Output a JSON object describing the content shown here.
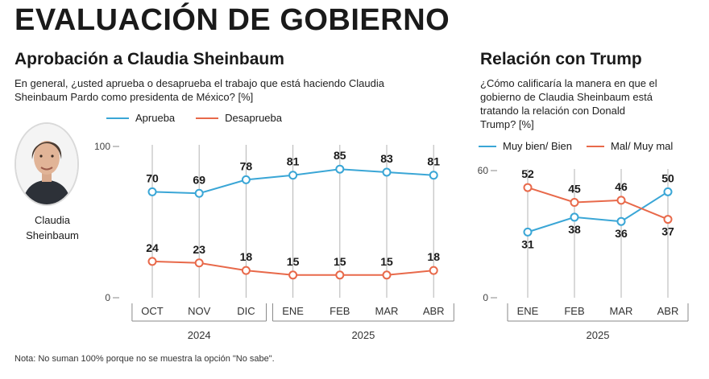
{
  "header": {
    "title": "EVALUACIÓN DE GOBIERNO"
  },
  "left_panel": {
    "subtitle": "Aprobación a Claudia Sheinbaum",
    "question_line1": "En general, ¿usted aprueba o desaprueba el trabajo que está haciendo Claudia",
    "question_line2": "Sheinbaum Pardo como presidenta de México? [%]",
    "photo_caption_line1": "Claudia",
    "photo_caption_line2": "Sheinbaum",
    "legend": [
      {
        "label": "Aprueba",
        "color": "#3aa6d6"
      },
      {
        "label": "Desaprueba",
        "color": "#e8694a"
      }
    ]
  },
  "right_panel": {
    "subtitle": "Relación con Trump",
    "question_line1": "¿Cómo calificaría la manera en que el",
    "question_line2": "gobierno de Claudia Sheinbaum está",
    "question_line3": "tratando la relación con Donald",
    "question_line4": "Trump? [%]",
    "legend": [
      {
        "label": "Muy bien/ Bien",
        "color": "#3aa6d6"
      },
      {
        "label": "Mal/ Muy mal",
        "color": "#e8694a"
      }
    ]
  },
  "footnote": "Nota: No suman 100% porque no se muestra la opción \"No sabe\".",
  "chart_data": [
    {
      "type": "line",
      "title": "Aprobación a Claudia Sheinbaum",
      "categories": [
        "OCT",
        "NOV",
        "DIC",
        "ENE",
        "FEB",
        "MAR",
        "ABR"
      ],
      "year_groups": [
        {
          "label": "2024",
          "start": 0,
          "end": 2
        },
        {
          "label": "2025",
          "start": 3,
          "end": 6
        }
      ],
      "ylim": [
        0,
        100
      ],
      "yticks": [
        0,
        100
      ],
      "series": [
        {
          "name": "Aprueba",
          "color": "#3aa6d6",
          "values": [
            70,
            69,
            78,
            81,
            85,
            83,
            81
          ]
        },
        {
          "name": "Desaprueba",
          "color": "#e8694a",
          "values": [
            24,
            23,
            18,
            15,
            15,
            15,
            18
          ]
        }
      ]
    },
    {
      "type": "line",
      "title": "Relación con Trump",
      "categories": [
        "ENE",
        "FEB",
        "MAR",
        "ABR"
      ],
      "year_groups": [
        {
          "label": "2025",
          "start": 0,
          "end": 3
        }
      ],
      "ylim": [
        0,
        60
      ],
      "yticks": [
        0,
        60
      ],
      "series": [
        {
          "name": "Muy bien/ Bien",
          "color": "#3aa6d6",
          "values": [
            31,
            38,
            36,
            50
          ]
        },
        {
          "name": "Mal/ Muy mal",
          "color": "#e8694a",
          "values": [
            52,
            45,
            46,
            37
          ]
        }
      ]
    }
  ]
}
